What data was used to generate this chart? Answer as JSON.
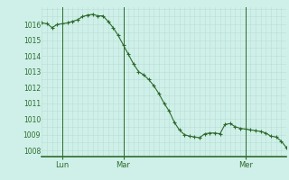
{
  "background_color": "#cff0e8",
  "plot_bg_color": "#cff0e8",
  "line_color": "#2d6a2d",
  "marker_color": "#2d6a2d",
  "grid_color": "#b8ddd6",
  "axis_label_color": "#2d6a2d",
  "ylim": [
    1007.6,
    1017.1
  ],
  "yticks": [
    1008,
    1009,
    1010,
    1011,
    1012,
    1013,
    1014,
    1015,
    1016
  ],
  "day_labels": [
    "Lun",
    "Mar",
    "Mer"
  ],
  "day_positions": [
    8,
    32,
    80
  ],
  "vline_x": [
    8,
    32,
    80
  ],
  "xlim": [
    0,
    96
  ],
  "x_values": [
    0,
    2,
    4,
    6,
    8,
    10,
    12,
    14,
    16,
    18,
    20,
    22,
    24,
    26,
    28,
    30,
    32,
    34,
    36,
    38,
    40,
    42,
    44,
    46,
    48,
    50,
    52,
    54,
    56,
    58,
    60,
    62,
    64,
    66,
    68,
    70,
    72,
    74,
    76,
    78,
    80,
    82,
    84,
    86,
    88,
    90,
    92,
    94,
    96
  ],
  "y_values": [
    1016.1,
    1016.05,
    1015.8,
    1016.0,
    1016.05,
    1016.1,
    1016.2,
    1016.3,
    1016.5,
    1016.6,
    1016.65,
    1016.55,
    1016.55,
    1016.2,
    1015.8,
    1015.3,
    1014.7,
    1014.1,
    1013.5,
    1013.0,
    1012.8,
    1012.5,
    1012.1,
    1011.6,
    1011.0,
    1010.5,
    1009.8,
    1009.3,
    1009.0,
    1008.9,
    1008.85,
    1008.8,
    1009.05,
    1009.1,
    1009.1,
    1009.05,
    1009.65,
    1009.7,
    1009.5,
    1009.4,
    1009.35,
    1009.3,
    1009.25,
    1009.2,
    1009.1,
    1008.9,
    1008.85,
    1008.6,
    1008.2
  ]
}
